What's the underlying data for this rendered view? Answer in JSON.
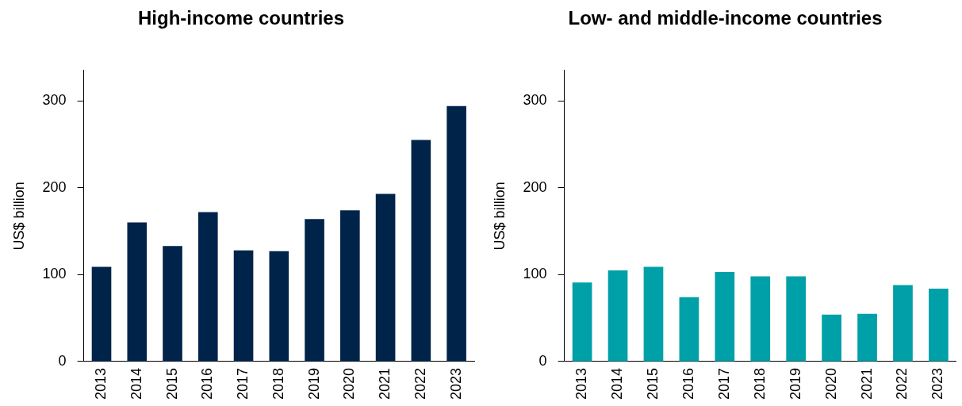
{
  "chart_data": [
    {
      "type": "bar",
      "title": "High-income countries",
      "ylabel": "US$ billion",
      "categories": [
        "2013",
        "2014",
        "2015",
        "2016",
        "2017",
        "2018",
        "2019",
        "2020",
        "2021",
        "2022",
        "2023"
      ],
      "series": [
        {
          "color": "#00234a",
          "values": [
            109,
            160,
            133,
            172,
            128,
            127,
            164,
            174,
            193,
            255,
            294
          ]
        }
      ],
      "ylim": [
        0,
        335
      ],
      "yticks": [
        0,
        100,
        200,
        300
      ],
      "grid": false,
      "legend": false
    },
    {
      "type": "bar",
      "title": "Low- and middle-income countries",
      "ylabel": "US$ billion",
      "categories": [
        "2013",
        "2014",
        "2015",
        "2016",
        "2017",
        "2018",
        "2019",
        "2020",
        "2021",
        "2022",
        "2023"
      ],
      "series": [
        {
          "color": "#00a0a8",
          "values": [
            91,
            105,
            109,
            74,
            103,
            98,
            98,
            54,
            55,
            88,
            84
          ]
        }
      ],
      "ylim": [
        0,
        335
      ],
      "yticks": [
        0,
        100,
        200,
        300
      ],
      "grid": false,
      "legend": false
    }
  ]
}
